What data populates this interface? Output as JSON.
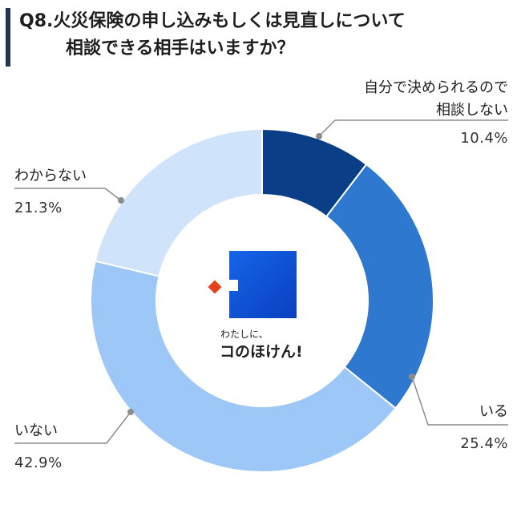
{
  "title": {
    "line1": "Q8.火災保険の申し込みもしくは見直しについて",
    "line2": "相談できる相手はいますか？"
  },
  "logo": {
    "small_text": "わたしに、",
    "big_text": "コのほけん!"
  },
  "colors": {
    "label_line": "#8c8c8c",
    "title_bar": "#1f3556"
  },
  "chart_data": {
    "type": "pie",
    "style": "donut",
    "title": "Q8.火災保険の申し込みもしくは見直しについて相談できる相手はいますか？",
    "categories": [
      "自分で決められるので相談しない",
      "いる",
      "いない",
      "わからない"
    ],
    "values": [
      10.4,
      25.4,
      42.9,
      21.3
    ],
    "unit": "%",
    "colors": [
      "#0a3f87",
      "#2f78cf",
      "#9cc7f7",
      "#cfe3fb"
    ],
    "labels": [
      {
        "lines": [
          "自分で決められるので",
          "相談しない"
        ],
        "pct": "10.4%"
      },
      {
        "lines": [
          "いる"
        ],
        "pct": "25.4%"
      },
      {
        "lines": [
          "いない"
        ],
        "pct": "42.9%"
      },
      {
        "lines": [
          "わからない"
        ],
        "pct": "21.3%"
      }
    ],
    "start_angle_deg": 0,
    "direction": "clockwise"
  }
}
